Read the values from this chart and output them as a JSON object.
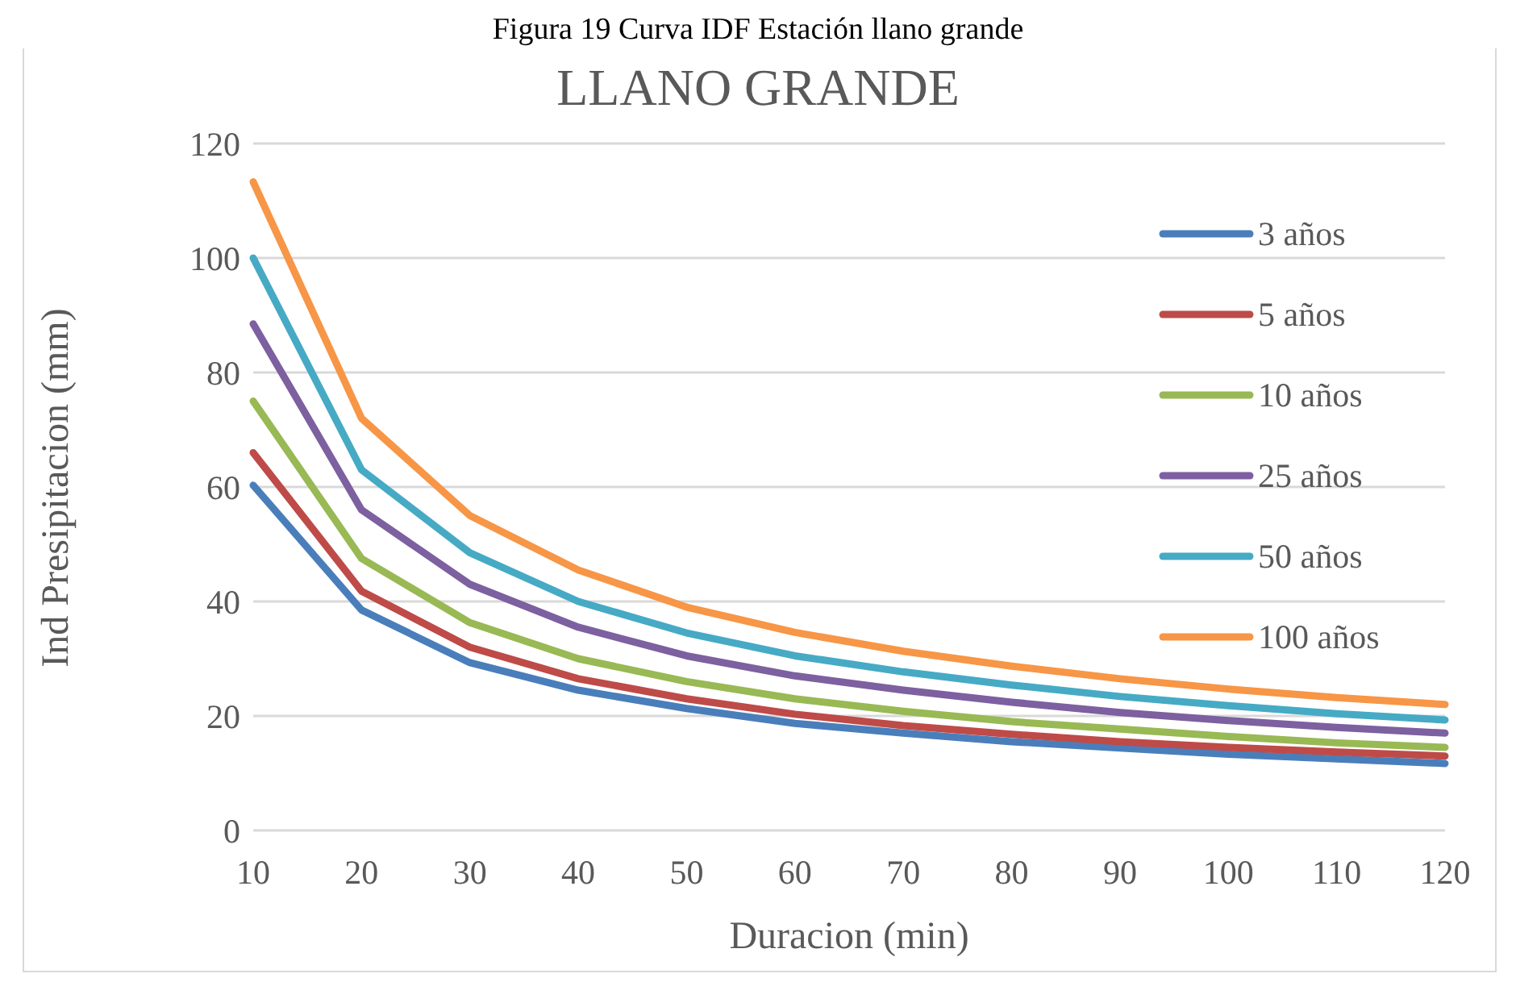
{
  "chart_data": {
    "type": "line",
    "title": "LLANO GRANDE",
    "xlabel": "Duracion (min)",
    "ylabel": "Ind Presipitacion (mm)",
    "annotations": [
      "Figura 19 Curva IDF Estación llano grande"
    ],
    "categories": [
      "10",
      "20",
      "30",
      "40",
      "50",
      "60",
      "70",
      "80",
      "90",
      "100",
      "110",
      "120"
    ],
    "series": [
      {
        "name": "3 años",
        "color": "#4a7ebb",
        "values": [
          60.3,
          38.5,
          29.3,
          24.5,
          21.3,
          18.7,
          17,
          15.5,
          14.4,
          13.3,
          12.5,
          11.7
        ]
      },
      {
        "name": "5 años",
        "color": "#be4b48",
        "values": [
          66,
          41.8,
          32,
          26.5,
          23,
          20.3,
          18.3,
          16.8,
          15.5,
          14.5,
          13.7,
          13
        ]
      },
      {
        "name": "10 años",
        "color": "#98b954",
        "values": [
          75,
          47.5,
          36.3,
          30,
          26,
          23,
          20.8,
          19,
          17.7,
          16.4,
          15.3,
          14.5
        ]
      },
      {
        "name": "25 años",
        "color": "#7d60a0",
        "values": [
          88.5,
          56,
          43,
          35.5,
          30.5,
          27,
          24.5,
          22.4,
          20.6,
          19.2,
          18,
          17
        ]
      },
      {
        "name": "50 años",
        "color": "#46aac5",
        "values": [
          100,
          63,
          48.5,
          40,
          34.5,
          30.5,
          27.7,
          25.4,
          23.4,
          21.8,
          20.4,
          19.3
        ]
      },
      {
        "name": "100 años",
        "color": "#f79646",
        "values": [
          113.3,
          72,
          55,
          45.5,
          39,
          34.6,
          31.3,
          28.7,
          26.5,
          24.7,
          23.2,
          22
        ]
      }
    ],
    "ylim": [
      0,
      120
    ],
    "yticks": [
      0,
      20,
      40,
      60,
      80,
      100,
      120
    ],
    "grid": "y",
    "legend": "right",
    "marker": "none",
    "line_style": "solid"
  }
}
